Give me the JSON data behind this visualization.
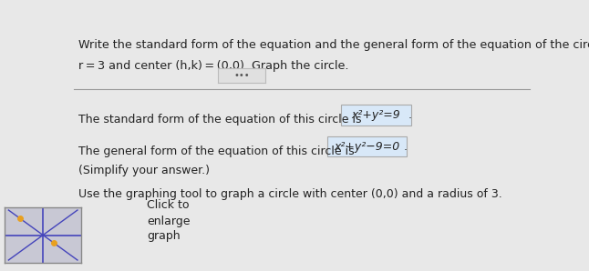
{
  "bg_color": "#e8e8e8",
  "title_line1": "Write the standard form of the equation and the general form of the equation of the circle of radius",
  "title_line2": "r = 3 and center (h,k) = (0,0). Graph the circle.",
  "divider_text": "•••",
  "line1_prefix": "The standard form of the equation of this circle is ",
  "line1_eq": "x²+y²=9",
  "line2_prefix": "The general form of the equation of this circle is ",
  "line2_eq": "x²+y²−9=0",
  "line3": "(Simplify your answer.)",
  "line4": "Use the graphing tool to graph a circle with center (0,0) and a radius of 3.",
  "box_text1": "Click to",
  "box_text2": "enlarge",
  "box_text3": "graph",
  "box_bg": "#d0d0d8",
  "box_border": "#aaaaaa",
  "text_color": "#222222",
  "orange_dot": "#e8a020",
  "axis_line_color": "#4444bb",
  "mini_graph_bg": "#c8c8d4"
}
